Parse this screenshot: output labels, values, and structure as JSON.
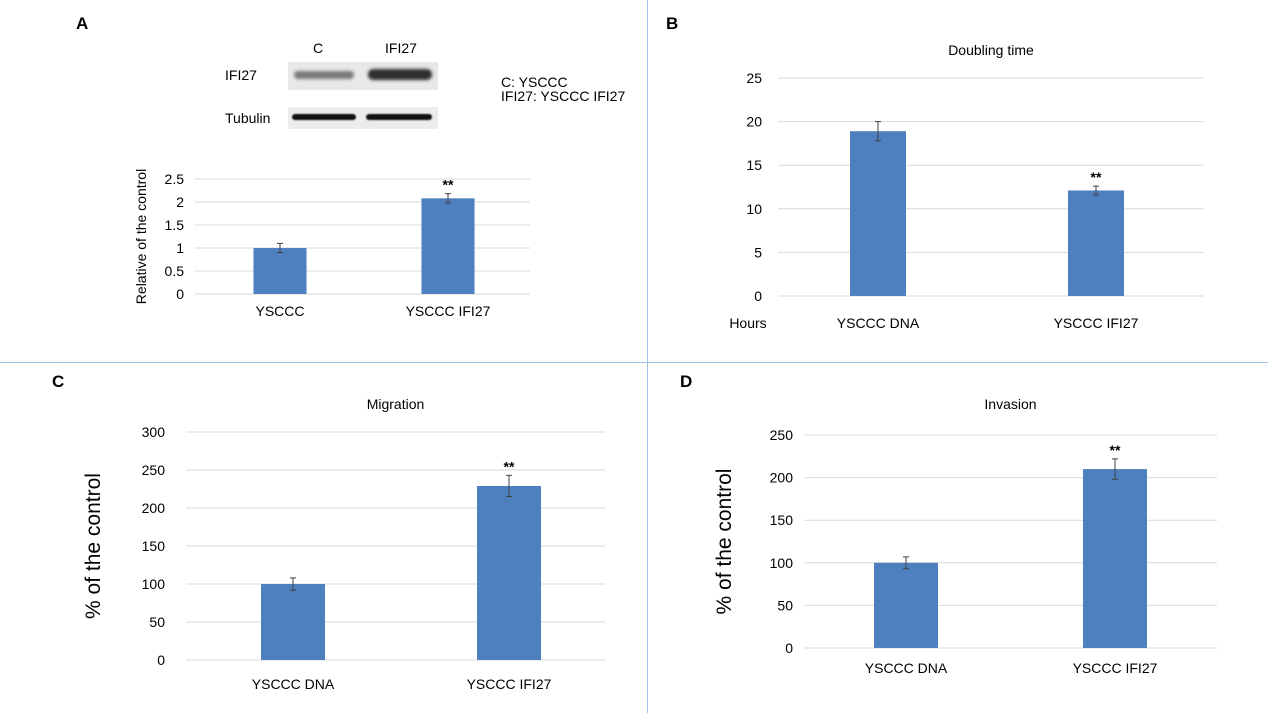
{
  "panels": {
    "a": "A",
    "b": "B",
    "c": "C",
    "d": "D"
  },
  "blot": {
    "lane_labels": [
      "C",
      "IFI27"
    ],
    "row_labels": [
      "IFI27",
      "Tubulin"
    ],
    "legend": [
      "C: YSCCC",
      "IFI27: YSCCC IFI27"
    ]
  },
  "colors": {
    "bar": "#4e7fbf",
    "grid": "#d9d9d9",
    "divider": "#9dc3e6"
  },
  "chart_data": [
    {
      "panel": "A",
      "type": "bar",
      "title": "",
      "xlabel": "",
      "ylabel": "Relative of the control",
      "categories": [
        "YSCCC",
        "YSCCC IFI27"
      ],
      "values": [
        1.0,
        2.08
      ],
      "errors": [
        0.1,
        0.1
      ],
      "annotations": [
        "",
        "**"
      ],
      "ylim": [
        0,
        2.5
      ],
      "yticks": [
        0,
        0.5,
        1,
        1.5,
        2,
        2.5
      ],
      "grid": true
    },
    {
      "panel": "B",
      "type": "bar",
      "title": "Doubling time",
      "xlabel": "Hours",
      "ylabel": "",
      "categories": [
        "YSCCC DNA",
        "YSCCC IFI27"
      ],
      "values": [
        18.9,
        12.1
      ],
      "errors": [
        1.1,
        0.5
      ],
      "annotations": [
        "",
        "**"
      ],
      "ylim": [
        0,
        25
      ],
      "yticks": [
        0,
        5,
        10,
        15,
        20,
        25
      ],
      "grid": true
    },
    {
      "panel": "C",
      "type": "bar",
      "title": "Migration",
      "xlabel": "",
      "ylabel": "% of the control",
      "categories": [
        "YSCCC DNA",
        "YSCCC IFI27"
      ],
      "values": [
        100,
        229
      ],
      "errors": [
        8,
        14
      ],
      "annotations": [
        "",
        "**"
      ],
      "ylim": [
        0,
        300
      ],
      "yticks": [
        0,
        50,
        100,
        150,
        200,
        250,
        300
      ],
      "grid": true
    },
    {
      "panel": "D",
      "type": "bar",
      "title": "Invasion",
      "xlabel": "",
      "ylabel": "% of the control",
      "categories": [
        "YSCCC DNA",
        "YSCCC IFI27"
      ],
      "values": [
        100,
        210
      ],
      "errors": [
        7,
        12
      ],
      "annotations": [
        "",
        "**"
      ],
      "ylim": [
        0,
        250
      ],
      "yticks": [
        0,
        50,
        100,
        150,
        200,
        250
      ],
      "grid": true
    }
  ]
}
